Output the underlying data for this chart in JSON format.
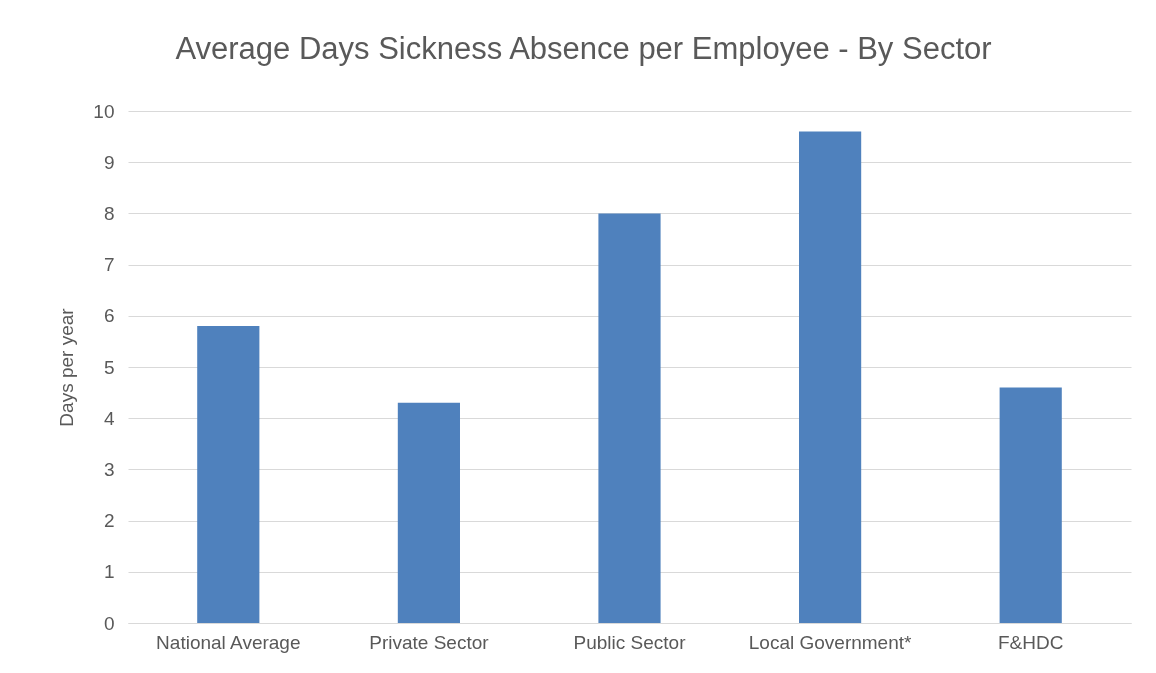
{
  "chart_data": {
    "type": "bar",
    "title": "Average Days Sickness Absence per Employee - By Sector",
    "ylabel": "Days per year",
    "categories": [
      "National Average",
      "Private Sector",
      "Public Sector",
      "Local Government*",
      "F&HDC"
    ],
    "values": [
      5.8,
      4.3,
      8.0,
      9.6,
      4.6
    ],
    "color": "#4f81bd",
    "ylim": [
      0,
      10
    ],
    "yticks": [
      0,
      1,
      2,
      3,
      4,
      5,
      6,
      7,
      8,
      9,
      10
    ],
    "grid": "y"
  }
}
